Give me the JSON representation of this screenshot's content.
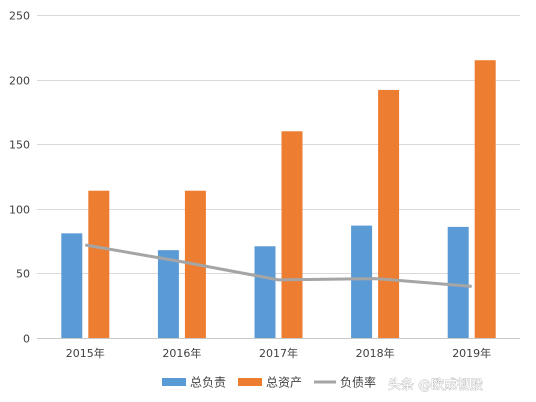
{
  "chart_data": {
    "type": "bar",
    "categories": [
      "2015年",
      "2016年",
      "2017年",
      "2018年",
      "2019年"
    ],
    "series": [
      {
        "name": "总负责",
        "type": "bar",
        "color": "#5b9bd5",
        "values": [
          81,
          68,
          71,
          87,
          86
        ]
      },
      {
        "name": "总资产",
        "type": "bar",
        "color": "#ed7d31",
        "values": [
          114,
          114,
          160,
          192,
          215
        ]
      },
      {
        "name": "负债率",
        "type": "line",
        "color": "#a5a5a5",
        "values": [
          72,
          59,
          45,
          46,
          40
        ]
      }
    ],
    "y_ticks": [
      0,
      50,
      100,
      150,
      200,
      250
    ],
    "ylim": [
      0,
      250
    ],
    "grid": true,
    "legend_position": "bottom"
  },
  "watermark": {
    "text": "头条 @欧成韧股"
  }
}
